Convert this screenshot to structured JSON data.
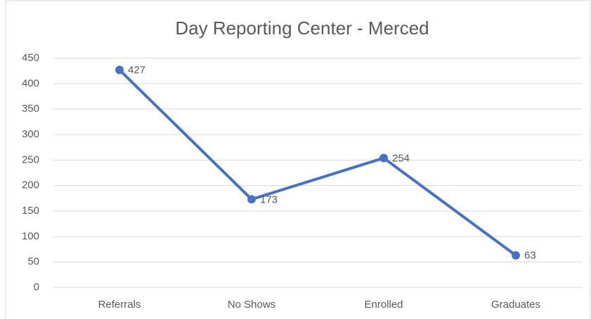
{
  "chart_data": {
    "type": "line",
    "title": "Day Reporting Center - Merced",
    "categories": [
      "Referrals",
      "No Shows",
      "Enrolled",
      "Graduates"
    ],
    "values": [
      427,
      173,
      254,
      63
    ],
    "color": "#4472c4",
    "ylim": [
      0,
      450
    ],
    "yticks": [
      0,
      50,
      100,
      150,
      200,
      250,
      300,
      350,
      400,
      450
    ],
    "grid": true
  }
}
